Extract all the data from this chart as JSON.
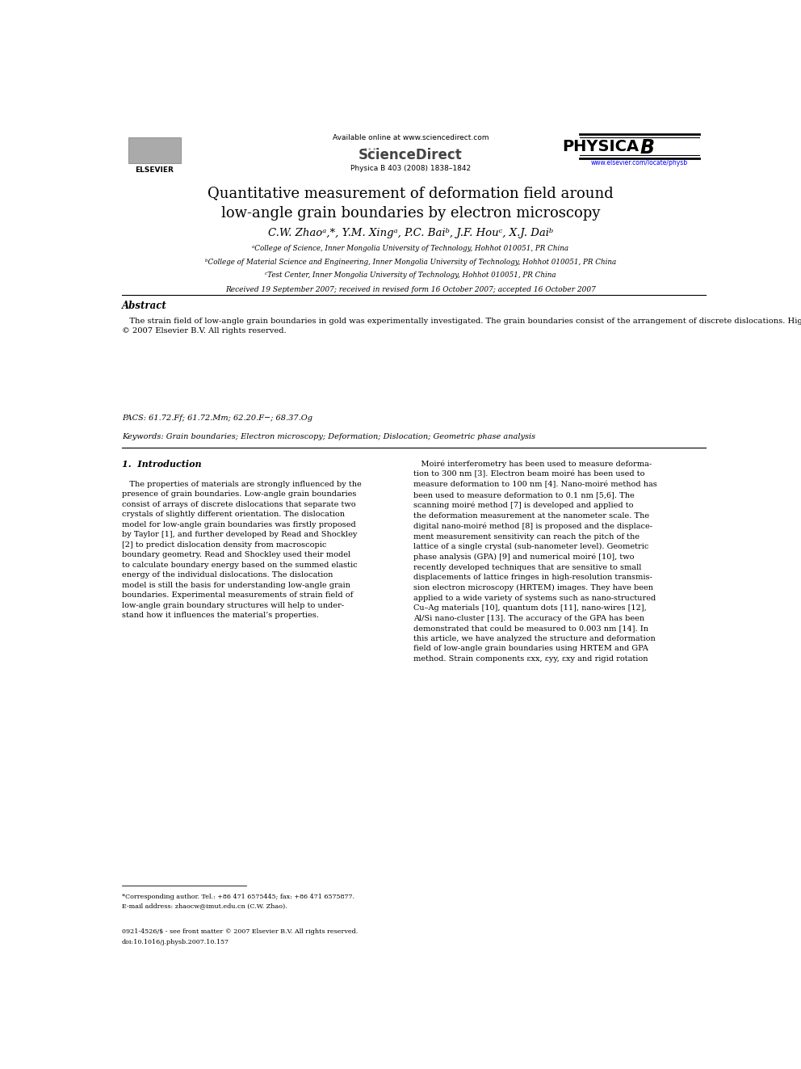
{
  "bg_color": "#ffffff",
  "page_width": 9.92,
  "page_height": 13.23,
  "available_online": "Available online at www.sciencedirect.com",
  "journal_info": "Physica B 403 (2008) 1838–1842",
  "elsevier_text": "ELSEVIER",
  "sciencedirect_text": "ScienceDirect",
  "physica_b_text": "PHYSICA",
  "website": "www.elsevier.com/locate/physb",
  "title_line1": "Quantitative measurement of deformation field around",
  "title_line2": "low-angle grain boundaries by electron microscopy",
  "authors": "C.W. Zhaoᵃ,*, Y.M. Xingᵃ, P.C. Baiᵇ, J.F. Houᶜ, X.J. Daiᵇ",
  "aff1": "ᵃCollege of Science, Inner Mongolia University of Technology, Hohhot 010051, PR China",
  "aff2": "ᵇCollege of Material Science and Engineering, Inner Mongolia University of Technology, Hohhot 010051, PR China",
  "aff3": "ᶜTest Center, Inner Mongolia University of Technology, Hohhot 010051, PR China",
  "received": "Received 19 September 2007; received in revised form 16 October 2007; accepted 16 October 2007",
  "abstract_title": "Abstract",
  "abstract_body": "   The strain field of low-angle grain boundaries in gold was experimentally investigated. The grain boundaries consist of the arrangement of discrete dislocations. High-resolution transmission electron microscopy (HRTEM) and geometric phase analysis (GPA) were employed to map the strain field of grain boundaries. The numerical moiré method was used to visualize the dislocations. The strain components εxx, εyy, εxy and rigid rotation ωxy were mapped. The dislocation core regions are convergence regions of strain. The largest values of strain occur in the immediate dislocation core region. The strain field around an edge dislocation was compared with Peierls–Nabarro dislocation model. The comparison result has demonstrated that the Peierls–Nabarro model can describe the strain field around edge dislocation.\n© 2007 Elsevier B.V. All rights reserved.",
  "pacs": "PACS: 61.72.Ff; 61.72.Mm; 62.20.F−; 68.37.Og",
  "keywords": "Keywords: Grain boundaries; Electron microscopy; Deformation; Dislocation; Geometric phase analysis",
  "sec1_title": "1.  Introduction",
  "sec1_left": "   The properties of materials are strongly influenced by the\npresence of grain boundaries. Low-angle grain boundaries\nconsist of arrays of discrete dislocations that separate two\ncrystals of slightly different orientation. The dislocation\nmodel for low-angle grain boundaries was firstly proposed\nby Taylor [1], and further developed by Read and Shockley\n[2] to predict dislocation density from macroscopic\nboundary geometry. Read and Shockley used their model\nto calculate boundary energy based on the summed elastic\nenergy of the individual dislocations. The dislocation\nmodel is still the basis for understanding low-angle grain\nboundaries. Experimental measurements of strain field of\nlow-angle grain boundary structures will help to under-\nstand how it influences the material’s properties.",
  "sec1_right": "   Moiré interferometry has been used to measure deforma-\ntion to 300 nm [3]. Electron beam moiré has been used to\nmeasure deformation to 100 nm [4]. Nano-moiré method has\nbeen used to measure deformation to 0.1 nm [5,6]. The\nscanning moiré method [7] is developed and applied to\nthe deformation measurement at the nanometer scale. The\ndigital nano-moiré method [8] is proposed and the displace-\nment measurement sensitivity can reach the pitch of the\nlattice of a single crystal (sub-nanometer level). Geometric\nphase analysis (GPA) [9] and numerical moiré [10], two\nrecently developed techniques that are sensitive to small\ndisplacements of lattice fringes in high-resolution transmis-\nsion electron microscopy (HRTEM) images. They have been\napplied to a wide variety of systems such as nano-structured\nCu–Ag materials [10], quantum dots [11], nano-wires [12],\nAl/Si nano-cluster [13]. The accuracy of the GPA has been\ndemonstrated that could be measured to 0.003 nm [14]. In\nthis article, we have analyzed the structure and deformation\nfield of low-angle grain boundaries using HRTEM and GPA\nmethod. Strain components εxx, εyy, εxy and rigid rotation",
  "footnote": "*Corresponding author. Tel.: +86 471 6575445; fax: +86 471 6575877.\nE-mail address: zhaocw@imut.edu.cn (C.W. Zhao).",
  "footer_line1": "0921-4526/$ - see front matter © 2007 Elsevier B.V. All rights reserved.",
  "footer_line2": "doi:10.1016/j.physb.2007.10.157"
}
